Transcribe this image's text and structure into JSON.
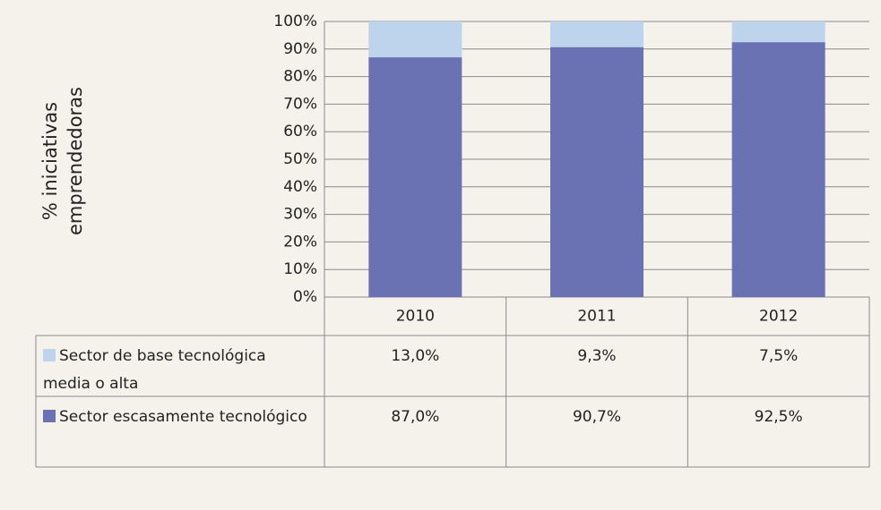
{
  "chart_data": {
    "type": "stacked_bar",
    "ylabel": "% iniciativas emprendedoras",
    "categories": [
      "2010",
      "2011",
      "2012"
    ],
    "series": [
      {
        "name": "Sector de base tecnológica media o alta",
        "color": "#bdd4ec",
        "values": [
          13.0,
          9.3,
          7.5
        ],
        "value_labels": [
          "13,0%",
          "9,3%",
          "7,5%"
        ]
      },
      {
        "name": "Sector escasamente tecnológico",
        "color": "#6a72b4",
        "values": [
          87.0,
          90.7,
          92.5
        ],
        "value_labels": [
          "87,0%",
          "90,7%",
          "92,5%"
        ]
      }
    ],
    "ylim": [
      0,
      100
    ],
    "yticks": [
      {
        "value": 0,
        "label": "0%"
      },
      {
        "value": 10,
        "label": "10%"
      },
      {
        "value": 20,
        "label": "20%"
      },
      {
        "value": 30,
        "label": "30%"
      },
      {
        "value": 40,
        "label": "40%"
      },
      {
        "value": 50,
        "label": "50%"
      },
      {
        "value": 60,
        "label": "60%"
      },
      {
        "value": 70,
        "label": "70%"
      },
      {
        "value": 80,
        "label": "80%"
      },
      {
        "value": 90,
        "label": "90%"
      },
      {
        "value": 100,
        "label": "100%"
      }
    ],
    "grid": true
  }
}
